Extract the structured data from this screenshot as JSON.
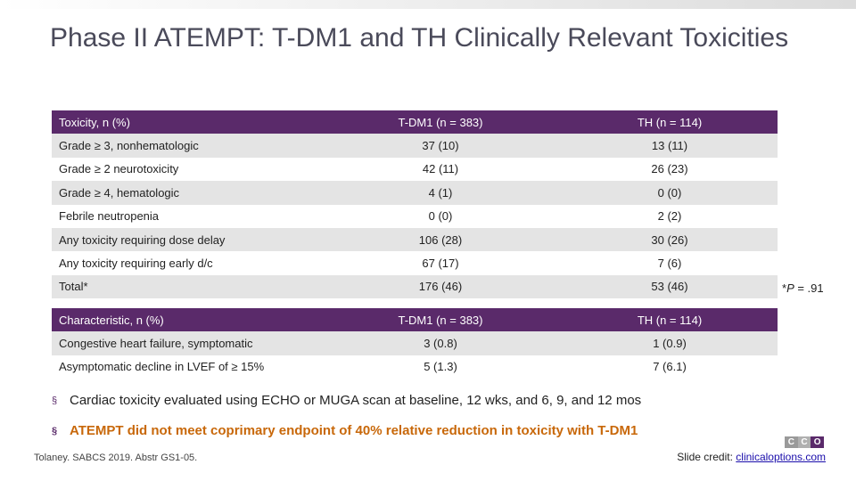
{
  "slide_title": "Phase II ATEMPT: T-DM1 and TH Clinically Relevant Toxicities",
  "toxicity_table": {
    "headers": [
      "Toxicity, n (%)",
      "T-DM1 (n = 383)",
      "TH (n = 114)"
    ],
    "rows": [
      [
        "Grade ≥ 3, nonhematologic",
        "37 (10)",
        "13 (11)"
      ],
      [
        "Grade ≥ 2 neurotoxicity",
        "42 (11)",
        "26 (23)"
      ],
      [
        "Grade ≥ 4, hematologic",
        "4 (1)",
        "0 (0)"
      ],
      [
        "Febrile neutropenia",
        "0 (0)",
        "2 (2)"
      ],
      [
        "Any toxicity requiring dose delay",
        "106 (28)",
        "30 (26)"
      ],
      [
        "Any toxicity requiring early d/c",
        "67 (17)",
        "7 (6)"
      ],
      [
        "Total*",
        "176 (46)",
        "53 (46)"
      ]
    ]
  },
  "pvalue_note": {
    "label": "P",
    "prefix": "*",
    "value": " = .91"
  },
  "characteristic_table": {
    "headers": [
      "Characteristic, n (%)",
      "T-DM1 (n = 383)",
      "TH (n = 114)"
    ],
    "rows": [
      [
        "Congestive heart failure, symptomatic",
        "3 (0.8)",
        "1 (0.9)"
      ],
      [
        "Asymptomatic decline in LVEF of ≥ 15%",
        "5 (1.3)",
        "7 (6.1)"
      ]
    ]
  },
  "bullets": [
    "Cardiac toxicity evaluated using ECHO or MUGA scan at baseline, 12 wks, and 6, 9, and 12 mos",
    "ATEMPT did not meet coprimary endpoint of 40% relative reduction in toxicity with T-DM1"
  ],
  "bullet_marker": "§",
  "citation": "Tolaney. SABCS 2019. Abstr GS1-05.",
  "credit": {
    "label": "Slide credit:",
    "link": "clinicaloptions.com"
  },
  "logo": {
    "letters": [
      "C",
      "C",
      "O"
    ]
  },
  "colors": {
    "header_purple": "#5a2a6a",
    "accent_orange": "#c8680a",
    "row_shade": "#e4e4e4"
  }
}
